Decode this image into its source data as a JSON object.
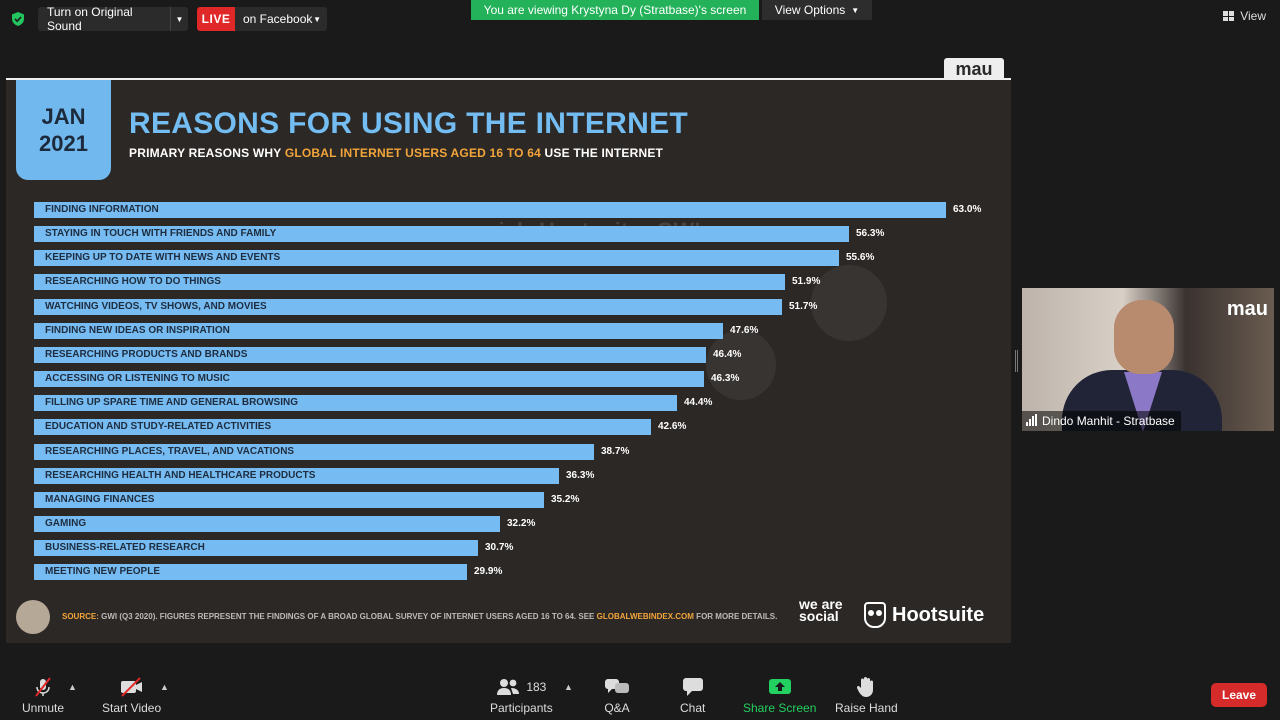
{
  "topbar": {
    "original_sound_label": "Turn on Original Sound",
    "live_badge": "LIVE",
    "live_destination": "on Facebook",
    "viewing_banner": "You are viewing Krystyna Dy (Stratbase)'s screen",
    "view_options_label": "View Options",
    "view_label": "View"
  },
  "slide": {
    "corner_tag": "mau",
    "date_month": "JAN",
    "date_year": "2021",
    "title": "REASONS FOR USING THE INTERNET",
    "subtitle_pre": "PRIMARY REASONS WHY ",
    "subtitle_highlight": "GLOBAL INTERNET USERS AGED 16 TO 64",
    "subtitle_post": " USE THE INTERNET",
    "watermark_1": "we are social",
    "watermark_2": "Hootsuite",
    "watermark_3": "GWI.",
    "source_label": "SOURCE:",
    "source_text": " GWI (Q3 2020). FIGURES REPRESENT THE FINDINGS OF A BROAD GLOBAL SURVEY OF INTERNET USERS AGED 16 TO 64. SEE ",
    "source_link": "GLOBALWEBINDEX.COM",
    "source_tail": " FOR MORE DETAILS.",
    "logo_was": "we are social",
    "logo_hootsuite": "Hootsuite"
  },
  "chart_data": {
    "type": "bar",
    "orientation": "horizontal",
    "categories": [
      "FINDING INFORMATION",
      "STAYING IN TOUCH WITH FRIENDS AND FAMILY",
      "KEEPING UP TO DATE WITH NEWS AND EVENTS",
      "RESEARCHING HOW TO DO THINGS",
      "WATCHING VIDEOS, TV SHOWS, AND MOVIES",
      "FINDING NEW IDEAS OR INSPIRATION",
      "RESEARCHING PRODUCTS AND BRANDS",
      "ACCESSING OR LISTENING TO MUSIC",
      "FILLING UP SPARE TIME AND GENERAL BROWSING",
      "EDUCATION AND STUDY-RELATED ACTIVITIES",
      "RESEARCHING PLACES, TRAVEL, AND VACATIONS",
      "RESEARCHING HEALTH AND HEALTHCARE PRODUCTS",
      "MANAGING FINANCES",
      "GAMING",
      "BUSINESS-RELATED RESEARCH",
      "MEETING NEW PEOPLE"
    ],
    "values": [
      63.0,
      56.3,
      55.6,
      51.9,
      51.7,
      47.6,
      46.4,
      46.3,
      44.4,
      42.6,
      38.7,
      36.3,
      35.2,
      32.2,
      30.7,
      29.9
    ],
    "value_labels": [
      "63.0%",
      "56.3%",
      "55.6%",
      "51.9%",
      "51.7%",
      "47.6%",
      "46.4%",
      "46.3%",
      "44.4%",
      "42.6%",
      "38.7%",
      "36.3%",
      "35.2%",
      "32.2%",
      "30.7%",
      "29.9%"
    ],
    "title": "REASONS FOR USING THE INTERNET",
    "xlim": [
      0,
      63.0
    ],
    "bar_color": "#76bcf2"
  },
  "video_tile": {
    "tag": "mau",
    "participant_name": "Dindo Manhit - Stratbase"
  },
  "toolbar": {
    "unmute": "Unmute",
    "start_video": "Start Video",
    "participants": "Participants",
    "participant_count": "183",
    "qa": "Q&A",
    "chat": "Chat",
    "share_screen": "Share Screen",
    "raise_hand": "Raise Hand",
    "leave": "Leave"
  },
  "colors": {
    "accent_green": "#23b25a",
    "live_red": "#e02828",
    "leave_red": "#d62b2b",
    "slide_blue": "#76bcf2",
    "slide_orange": "#f2a53a"
  }
}
